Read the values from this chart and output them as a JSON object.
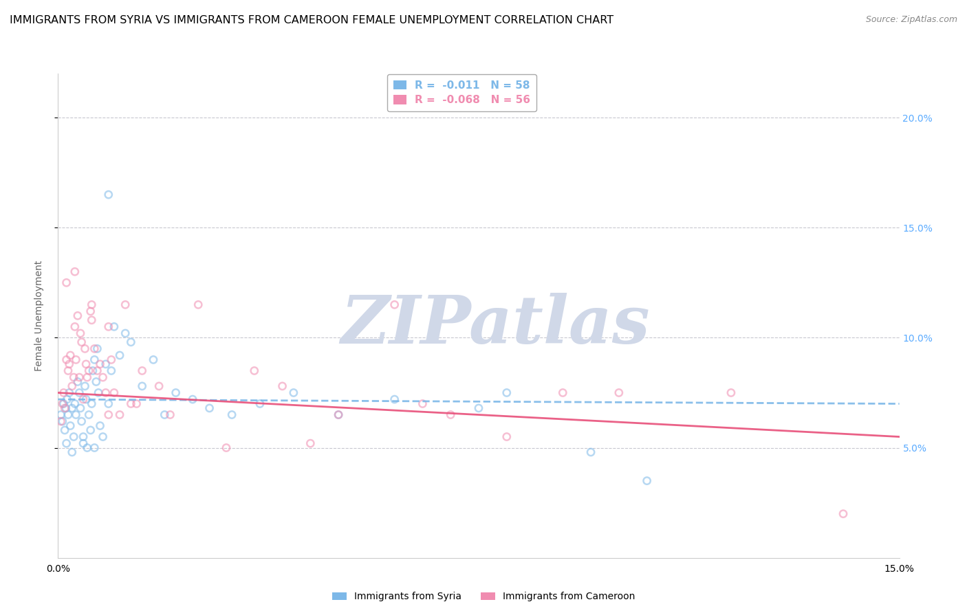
{
  "title": "IMMIGRANTS FROM SYRIA VS IMMIGRANTS FROM CAMEROON FEMALE UNEMPLOYMENT CORRELATION CHART",
  "source": "Source: ZipAtlas.com",
  "ylabel": "Female Unemployment",
  "xlim": [
    0.0,
    15.0
  ],
  "ylim": [
    0.0,
    22.0
  ],
  "yticks": [
    5.0,
    10.0,
    15.0,
    20.0
  ],
  "series": [
    {
      "name": "Immigrants from Syria",
      "color": "#7db8e8",
      "trend_color": "#7db8e8",
      "trend_style": "--",
      "R": -0.011,
      "N": 58,
      "x": [
        0.05,
        0.08,
        0.1,
        0.12,
        0.14,
        0.16,
        0.18,
        0.2,
        0.22,
        0.25,
        0.28,
        0.3,
        0.32,
        0.35,
        0.38,
        0.4,
        0.42,
        0.45,
        0.48,
        0.5,
        0.52,
        0.55,
        0.58,
        0.6,
        0.62,
        0.65,
        0.68,
        0.7,
        0.72,
        0.75,
        0.8,
        0.85,
        0.9,
        0.95,
        1.0,
        1.1,
        1.2,
        1.3,
        1.5,
        1.7,
        1.9,
        2.1,
        2.4,
        2.7,
        3.1,
        3.6,
        4.2,
        5.0,
        6.0,
        7.5,
        8.0,
        9.5,
        10.5,
        0.15,
        0.25,
        0.45,
        0.65,
        0.9
      ],
      "y": [
        6.5,
        6.2,
        7.0,
        5.8,
        6.8,
        7.2,
        6.5,
        7.5,
        6.0,
        6.8,
        5.5,
        7.0,
        6.5,
        8.0,
        7.5,
        6.8,
        6.2,
        5.5,
        7.8,
        7.2,
        5.0,
        6.5,
        5.8,
        7.0,
        8.5,
        9.0,
        8.0,
        9.5,
        7.5,
        6.0,
        5.5,
        8.8,
        7.0,
        8.5,
        10.5,
        9.2,
        10.2,
        9.8,
        7.8,
        9.0,
        6.5,
        7.5,
        7.2,
        6.8,
        6.5,
        7.0,
        7.5,
        6.5,
        7.2,
        6.8,
        7.5,
        4.8,
        3.5,
        5.2,
        4.8,
        5.2,
        5.0,
        16.5
      ]
    },
    {
      "name": "Immigrants from Cameroon",
      "color": "#f08cb0",
      "trend_color": "#e8507a",
      "trend_style": "-",
      "R": -0.068,
      "N": 56,
      "x": [
        0.05,
        0.08,
        0.1,
        0.12,
        0.15,
        0.18,
        0.2,
        0.22,
        0.25,
        0.28,
        0.3,
        0.32,
        0.35,
        0.38,
        0.4,
        0.42,
        0.45,
        0.48,
        0.5,
        0.52,
        0.55,
        0.58,
        0.6,
        0.65,
        0.7,
        0.75,
        0.8,
        0.85,
        0.9,
        0.95,
        1.0,
        1.1,
        1.2,
        1.3,
        1.5,
        1.8,
        2.0,
        2.5,
        3.0,
        3.5,
        4.0,
        4.5,
        5.0,
        6.0,
        6.5,
        7.0,
        8.0,
        9.0,
        10.0,
        12.0,
        14.0,
        0.15,
        0.3,
        0.6,
        0.9,
        1.4
      ],
      "y": [
        6.2,
        7.0,
        7.5,
        6.8,
        9.0,
        8.5,
        8.8,
        9.2,
        7.8,
        8.2,
        10.5,
        9.0,
        11.0,
        8.2,
        10.2,
        9.8,
        7.2,
        9.5,
        8.8,
        8.2,
        8.5,
        11.2,
        10.8,
        9.5,
        8.5,
        8.8,
        8.2,
        7.5,
        10.5,
        9.0,
        7.5,
        6.5,
        11.5,
        7.0,
        8.5,
        7.8,
        6.5,
        11.5,
        5.0,
        8.5,
        7.8,
        5.2,
        6.5,
        11.5,
        7.0,
        6.5,
        5.5,
        7.5,
        7.5,
        7.5,
        2.0,
        12.5,
        13.0,
        11.5,
        6.5,
        7.0
      ]
    }
  ],
  "watermark_text": "ZIPatlas",
  "watermark_color": "#d0d8e8",
  "watermark_fontsize": 70,
  "background_color": "#ffffff",
  "grid_color": "#c8c8d0",
  "title_fontsize": 11.5,
  "label_fontsize": 10,
  "tick_fontsize": 10,
  "right_ytick_color": "#5aabff",
  "dot_size": 55,
  "dot_alpha": 0.55,
  "dot_linewidth": 1.8,
  "trend_linewidth": 2.0
}
